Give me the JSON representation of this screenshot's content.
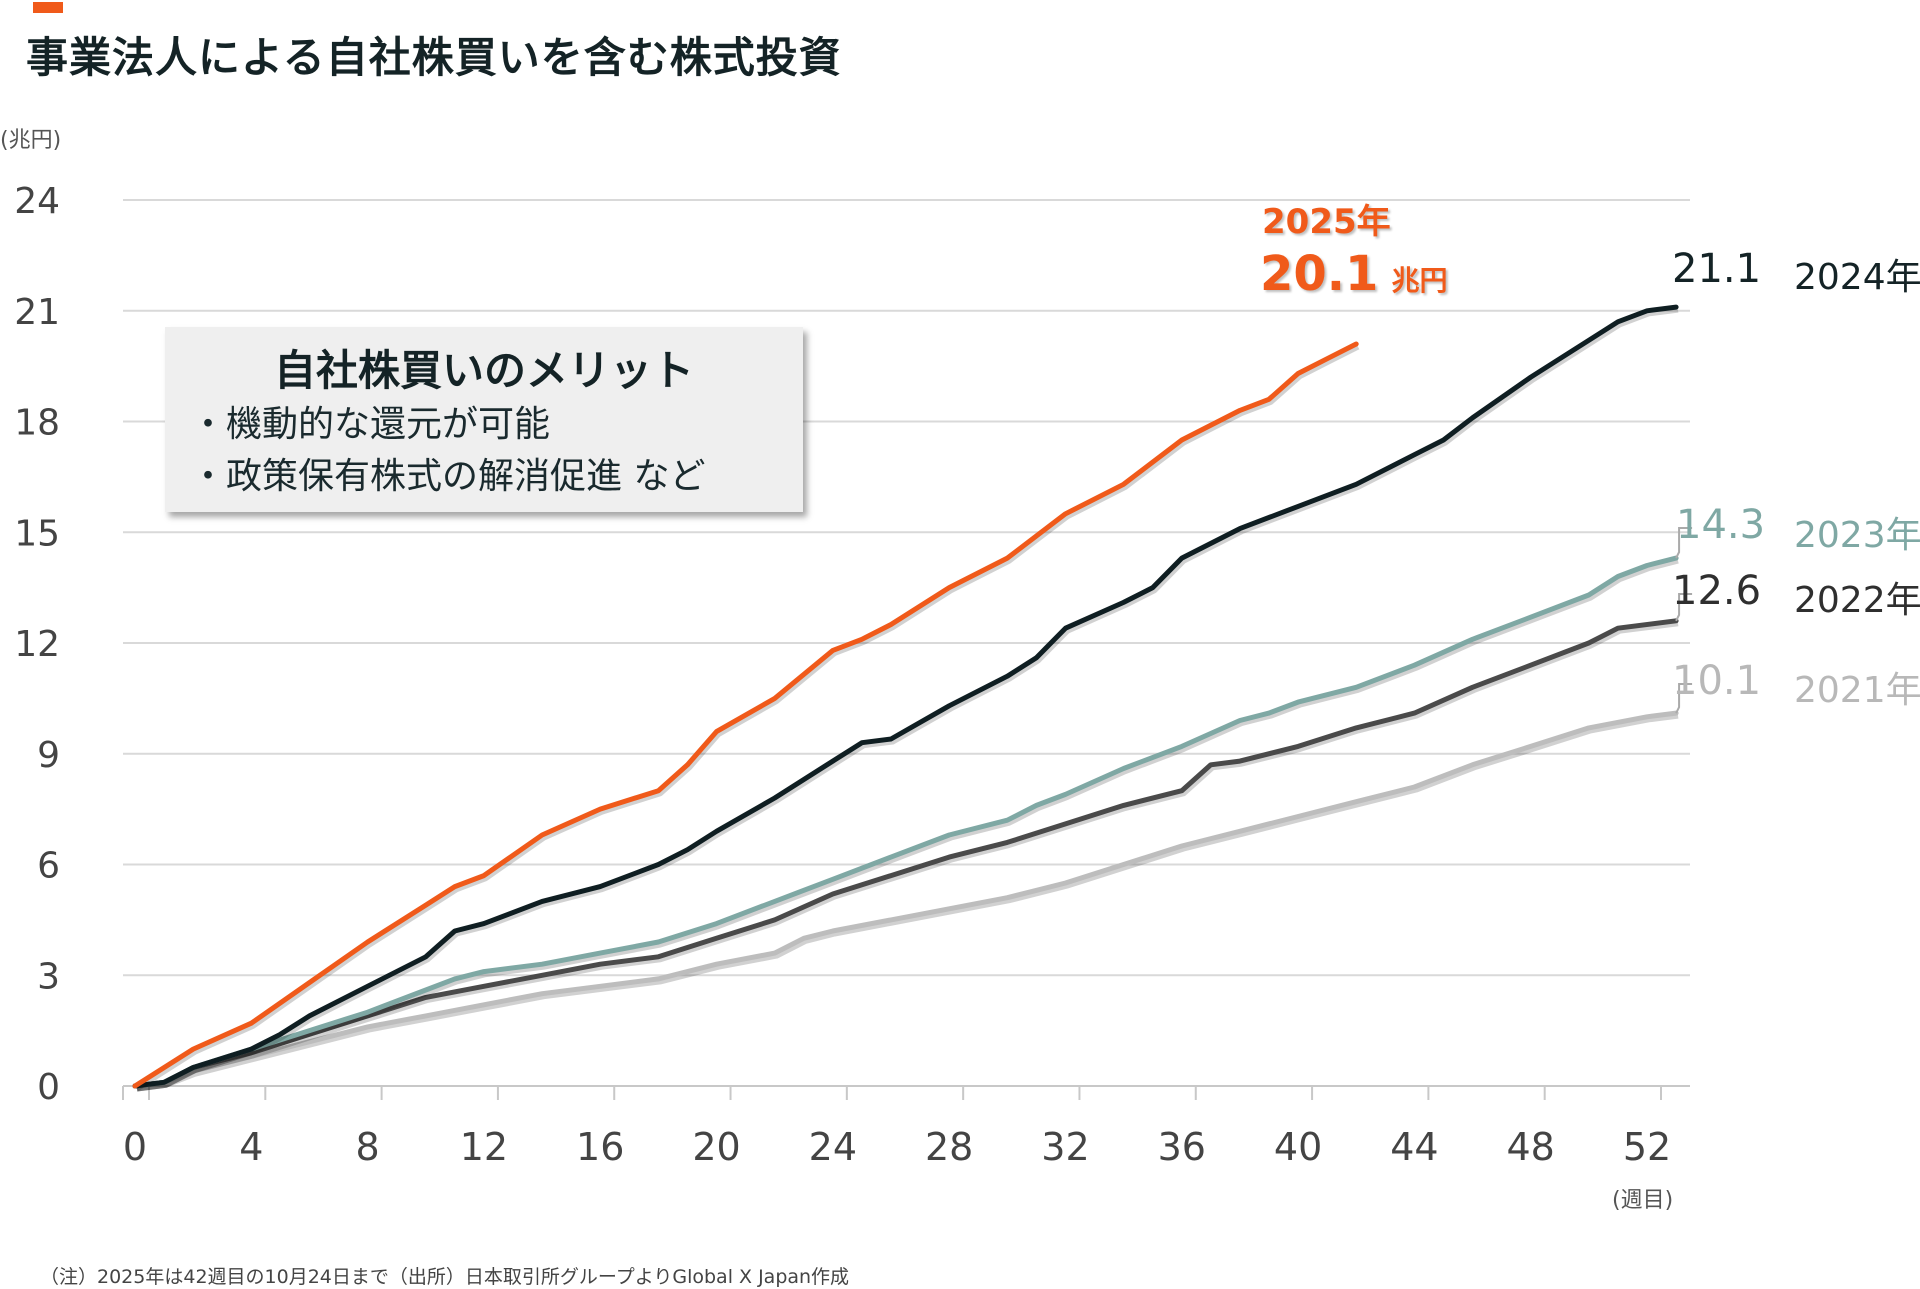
{
  "title": "事業法人による自社株買いを含む株式投資",
  "note": "（注）2025年は42週目の10月24日まで（出所）日本取引所グループよりGlobal X Japan作成",
  "callout": {
    "title": "自社株買いのメリット",
    "items": [
      "・機動的な還元が可能",
      "・政策保有株式の解消促進 など"
    ]
  },
  "highlight": {
    "year": "2025年",
    "value": "20.1",
    "unit": "兆円"
  },
  "end_labels": [
    {
      "value": "21.1",
      "year": "2024年"
    },
    {
      "value": "14.3",
      "year": "2023年"
    },
    {
      "value": "12.6",
      "year": "2022年"
    },
    {
      "value": "10.1",
      "year": "2021年"
    }
  ],
  "chart_data": {
    "type": "line",
    "title": "事業法人による自社株買いを含む株式投資",
    "xlabel": "(週目)",
    "ylabel": "(兆円)",
    "xlim": [
      0,
      53
    ],
    "ylim": [
      0,
      24
    ],
    "xticks": [
      0,
      4,
      8,
      12,
      16,
      20,
      24,
      28,
      32,
      36,
      40,
      44,
      48,
      52
    ],
    "yticks": [
      0,
      3,
      6,
      9,
      12,
      15,
      18,
      21,
      24
    ],
    "grid": true,
    "legend": "end-of-line labels",
    "series": [
      {
        "name": "2021年",
        "color": "#bdbdbd",
        "final_label": "10.1",
        "x": [
          0,
          1,
          2,
          4,
          6,
          8,
          10,
          12,
          14,
          16,
          18,
          20,
          22,
          23,
          24,
          26,
          28,
          30,
          32,
          34,
          36,
          38,
          40,
          42,
          44,
          46,
          48,
          50,
          52,
          53
        ],
        "y": [
          0,
          0.1,
          0.4,
          0.8,
          1.2,
          1.6,
          1.9,
          2.2,
          2.5,
          2.7,
          2.9,
          3.3,
          3.6,
          4.0,
          4.2,
          4.5,
          4.8,
          5.1,
          5.5,
          6.0,
          6.5,
          6.9,
          7.3,
          7.7,
          8.1,
          8.7,
          9.2,
          9.7,
          10.0,
          10.1
        ]
      },
      {
        "name": "2022年",
        "color": "#4a4a4a",
        "final_label": "12.6",
        "x": [
          0,
          1,
          2,
          4,
          6,
          8,
          10,
          12,
          14,
          16,
          18,
          20,
          22,
          24,
          26,
          28,
          30,
          32,
          34,
          36,
          37,
          38,
          40,
          42,
          44,
          46,
          48,
          50,
          51,
          53
        ],
        "y": [
          0,
          0.1,
          0.5,
          0.9,
          1.4,
          1.9,
          2.4,
          2.7,
          3.0,
          3.3,
          3.5,
          4.0,
          4.5,
          5.2,
          5.7,
          6.2,
          6.6,
          7.1,
          7.6,
          8.0,
          8.7,
          8.8,
          9.2,
          9.7,
          10.1,
          10.8,
          11.4,
          12.0,
          12.4,
          12.6
        ]
      },
      {
        "name": "2023年",
        "color": "#7fa8a4",
        "final_label": "14.3",
        "x": [
          0,
          1,
          2,
          4,
          6,
          8,
          10,
          11,
          12,
          14,
          16,
          18,
          20,
          22,
          24,
          26,
          28,
          30,
          31,
          32,
          34,
          36,
          38,
          39,
          40,
          42,
          44,
          46,
          48,
          50,
          51,
          52,
          53
        ],
        "y": [
          0,
          0.1,
          0.5,
          1.0,
          1.5,
          2.0,
          2.6,
          2.9,
          3.1,
          3.3,
          3.6,
          3.9,
          4.4,
          5.0,
          5.6,
          6.2,
          6.8,
          7.2,
          7.6,
          7.9,
          8.6,
          9.2,
          9.9,
          10.1,
          10.4,
          10.8,
          11.4,
          12.1,
          12.7,
          13.3,
          13.8,
          14.1,
          14.3
        ]
      },
      {
        "name": "2024年",
        "color": "#0f1e22",
        "final_label": "21.1",
        "x": [
          0,
          1,
          2,
          4,
          5,
          6,
          8,
          10,
          11,
          12,
          14,
          16,
          18,
          19,
          20,
          22,
          24,
          25,
          26,
          28,
          30,
          31,
          32,
          34,
          35,
          36,
          38,
          40,
          42,
          44,
          45,
          46,
          48,
          50,
          51,
          52,
          53
        ],
        "y": [
          0,
          0.1,
          0.5,
          1.0,
          1.4,
          1.9,
          2.7,
          3.5,
          4.2,
          4.4,
          5.0,
          5.4,
          6.0,
          6.4,
          6.9,
          7.8,
          8.8,
          9.3,
          9.4,
          10.3,
          11.1,
          11.6,
          12.4,
          13.1,
          13.5,
          14.3,
          15.1,
          15.7,
          16.3,
          17.1,
          17.5,
          18.1,
          19.2,
          20.2,
          20.7,
          21.0,
          21.1
        ]
      },
      {
        "name": "2025年",
        "color": "#f05a1a",
        "final_label": "20.1",
        "x": [
          0,
          2,
          4,
          6,
          8,
          10,
          11,
          12,
          14,
          16,
          18,
          19,
          20,
          22,
          24,
          25,
          26,
          28,
          30,
          32,
          34,
          36,
          38,
          39,
          40,
          41,
          42
        ],
        "y": [
          0,
          1.0,
          1.7,
          2.8,
          3.9,
          4.9,
          5.4,
          5.7,
          6.8,
          7.5,
          8.0,
          8.7,
          9.6,
          10.5,
          11.8,
          12.1,
          12.5,
          13.5,
          14.3,
          15.5,
          16.3,
          17.5,
          18.3,
          18.6,
          19.3,
          19.7,
          20.1
        ]
      }
    ]
  }
}
